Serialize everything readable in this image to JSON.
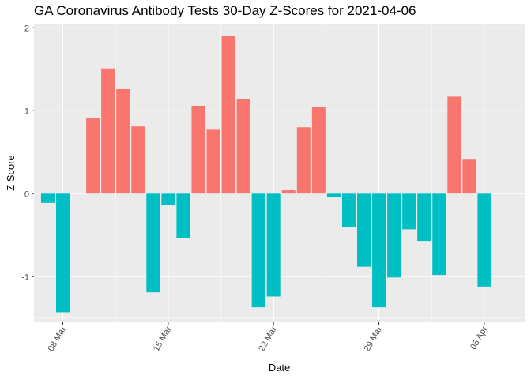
{
  "chart_data": {
    "type": "bar",
    "title": "GA Coronavirus Antibody Tests 30-Day Z-Scores for 2021-04-06",
    "xlabel": "Date",
    "ylabel": "Z Score",
    "x": [
      "2021-03-07",
      "2021-03-08",
      "2021-03-09",
      "2021-03-10",
      "2021-03-11",
      "2021-03-12",
      "2021-03-13",
      "2021-03-14",
      "2021-03-15",
      "2021-03-16",
      "2021-03-17",
      "2021-03-18",
      "2021-03-19",
      "2021-03-20",
      "2021-03-21",
      "2021-03-22",
      "2021-03-23",
      "2021-03-24",
      "2021-03-25",
      "2021-03-26",
      "2021-03-27",
      "2021-03-28",
      "2021-03-29",
      "2021-03-30",
      "2021-03-31",
      "2021-04-01",
      "2021-04-02",
      "2021-04-03",
      "2021-04-04",
      "2021-04-05",
      "2021-04-06"
    ],
    "values": [
      -0.11,
      -1.43,
      null,
      0.91,
      1.51,
      1.26,
      0.81,
      -1.19,
      -0.14,
      -0.54,
      1.06,
      0.77,
      1.9,
      1.14,
      -1.37,
      -1.24,
      0.04,
      0.8,
      1.05,
      -0.04,
      -0.4,
      -0.88,
      -1.37,
      -1.01,
      -0.43,
      -0.57,
      -0.98,
      1.17,
      0.41,
      -1.12,
      null
    ],
    "ylim": [
      -1.55,
      2.05
    ],
    "yticks": [
      -1,
      0,
      1,
      2
    ],
    "ytick_labels": [
      "-1",
      "0",
      "1",
      "2"
    ],
    "xticks": [
      "2021-03-08",
      "2021-03-15",
      "2021-03-22",
      "2021-03-29",
      "2021-04-05"
    ],
    "xtick_labels": [
      "08 Mar",
      "15 Mar",
      "22 Mar",
      "29 Mar",
      "05 Apr"
    ],
    "colors": {
      "positive": "#F8766D",
      "negative": "#00BFC4",
      "panel": "#EBEBEB",
      "grid": "#FFFFFF"
    },
    "grid": true,
    "legend": "none"
  }
}
